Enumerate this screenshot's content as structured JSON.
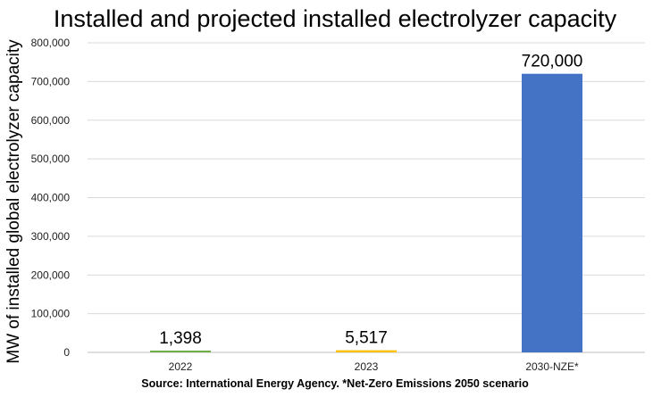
{
  "chart_data": {
    "type": "bar",
    "title": "Installed and projected installed electrolyzer capacity",
    "ylabel": "MW of installed global electrolyzer capacity",
    "xlabel": "",
    "categories": [
      "2022",
      "2023",
      "2030-NZE*"
    ],
    "values": [
      1398,
      5517,
      720000
    ],
    "value_labels": [
      "1,398",
      "5,517",
      "720,000"
    ],
    "bar_colors": [
      "#70AD47",
      "#FFC000",
      "#4472C4"
    ],
    "ylim": [
      0,
      800000
    ],
    "yticks": [
      0,
      100000,
      200000,
      300000,
      400000,
      500000,
      600000,
      700000,
      800000
    ],
    "ytick_labels": [
      "0",
      "100,000",
      "200,000",
      "300,000",
      "400,000",
      "500,000",
      "600,000",
      "700,000",
      "800,000"
    ],
    "grid": true,
    "source": "Source: International Energy Agency. *Net-Zero Emissions 2050 scenario"
  }
}
